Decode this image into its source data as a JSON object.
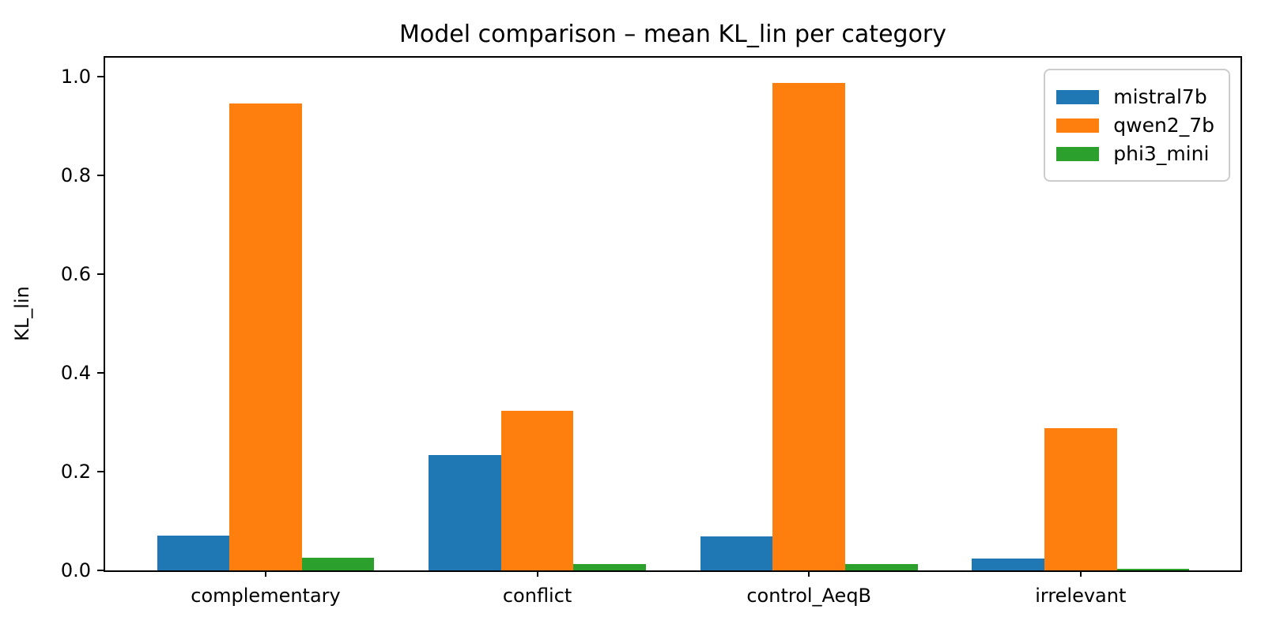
{
  "chart_data": {
    "type": "bar",
    "title": "Model comparison – mean KL_lin per category",
    "ylabel": "KL_lin",
    "xlabel": "",
    "categories": [
      "complementary",
      "conflict",
      "control_AeqB",
      "irrelevant"
    ],
    "series": [
      {
        "name": "mistral7b",
        "color": "#1f77b4",
        "values": [
          0.071,
          0.233,
          0.069,
          0.024
        ]
      },
      {
        "name": "qwen2_7b",
        "color": "#ff7f0e",
        "values": [
          0.945,
          0.323,
          0.987,
          0.288
        ]
      },
      {
        "name": "phi3_mini",
        "color": "#2ca02c",
        "values": [
          0.026,
          0.013,
          0.013,
          0.003
        ]
      }
    ],
    "ylim": [
      0,
      1.038
    ],
    "yticks": [
      "0.0",
      "0.2",
      "0.4",
      "0.6",
      "0.8",
      "1.0"
    ],
    "grid": false,
    "legend_position": "upper right",
    "axis_color": "#000000",
    "background_color": "#ffffff"
  }
}
